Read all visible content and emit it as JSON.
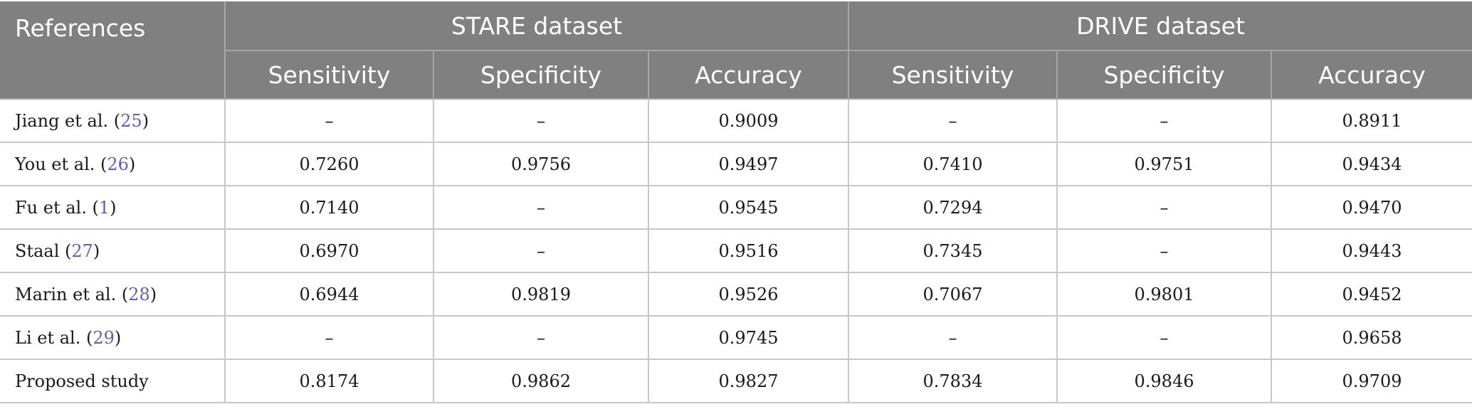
{
  "header": {
    "references": "References",
    "groups": [
      "STARE dataset",
      "DRIVE dataset"
    ],
    "metrics": [
      "Sensitivity",
      "Specificity",
      "Accuracy",
      "Sensitivity",
      "Specificity",
      "Accuracy"
    ]
  },
  "rows": [
    {
      "name": "Jiang et al. (",
      "cite": "25",
      "close": ")",
      "values": [
        "–",
        "–",
        "0.9009",
        "–",
        "–",
        "0.8911"
      ]
    },
    {
      "name": "You et al. (",
      "cite": "26",
      "close": ")",
      "values": [
        "0.7260",
        "0.9756",
        "0.9497",
        "0.7410",
        "0.9751",
        "0.9434"
      ]
    },
    {
      "name": "Fu et al. (",
      "cite": "1",
      "close": ")",
      "values": [
        "0.7140",
        "–",
        "0.9545",
        "0.7294",
        "–",
        "0.9470"
      ]
    },
    {
      "name": "Staal (",
      "cite": "27",
      "close": ")",
      "values": [
        "0.6970",
        "–",
        "0.9516",
        "0.7345",
        "–",
        "0.9443"
      ]
    },
    {
      "name": "Marin et al. (",
      "cite": "28",
      "close": ")",
      "values": [
        "0.6944",
        "0.9819",
        "0.9526",
        "0.7067",
        "0.9801",
        "0.9452"
      ]
    },
    {
      "name": "Li et al. (",
      "cite": "29",
      "close": ")",
      "values": [
        "–",
        "–",
        "0.9745",
        "–",
        "–",
        "0.9658"
      ]
    },
    {
      "name": "Proposed study",
      "cite": "",
      "close": "",
      "values": [
        "0.8174",
        "0.9862",
        "0.9827",
        "0.7834",
        "0.9846",
        "0.9709"
      ]
    }
  ]
}
